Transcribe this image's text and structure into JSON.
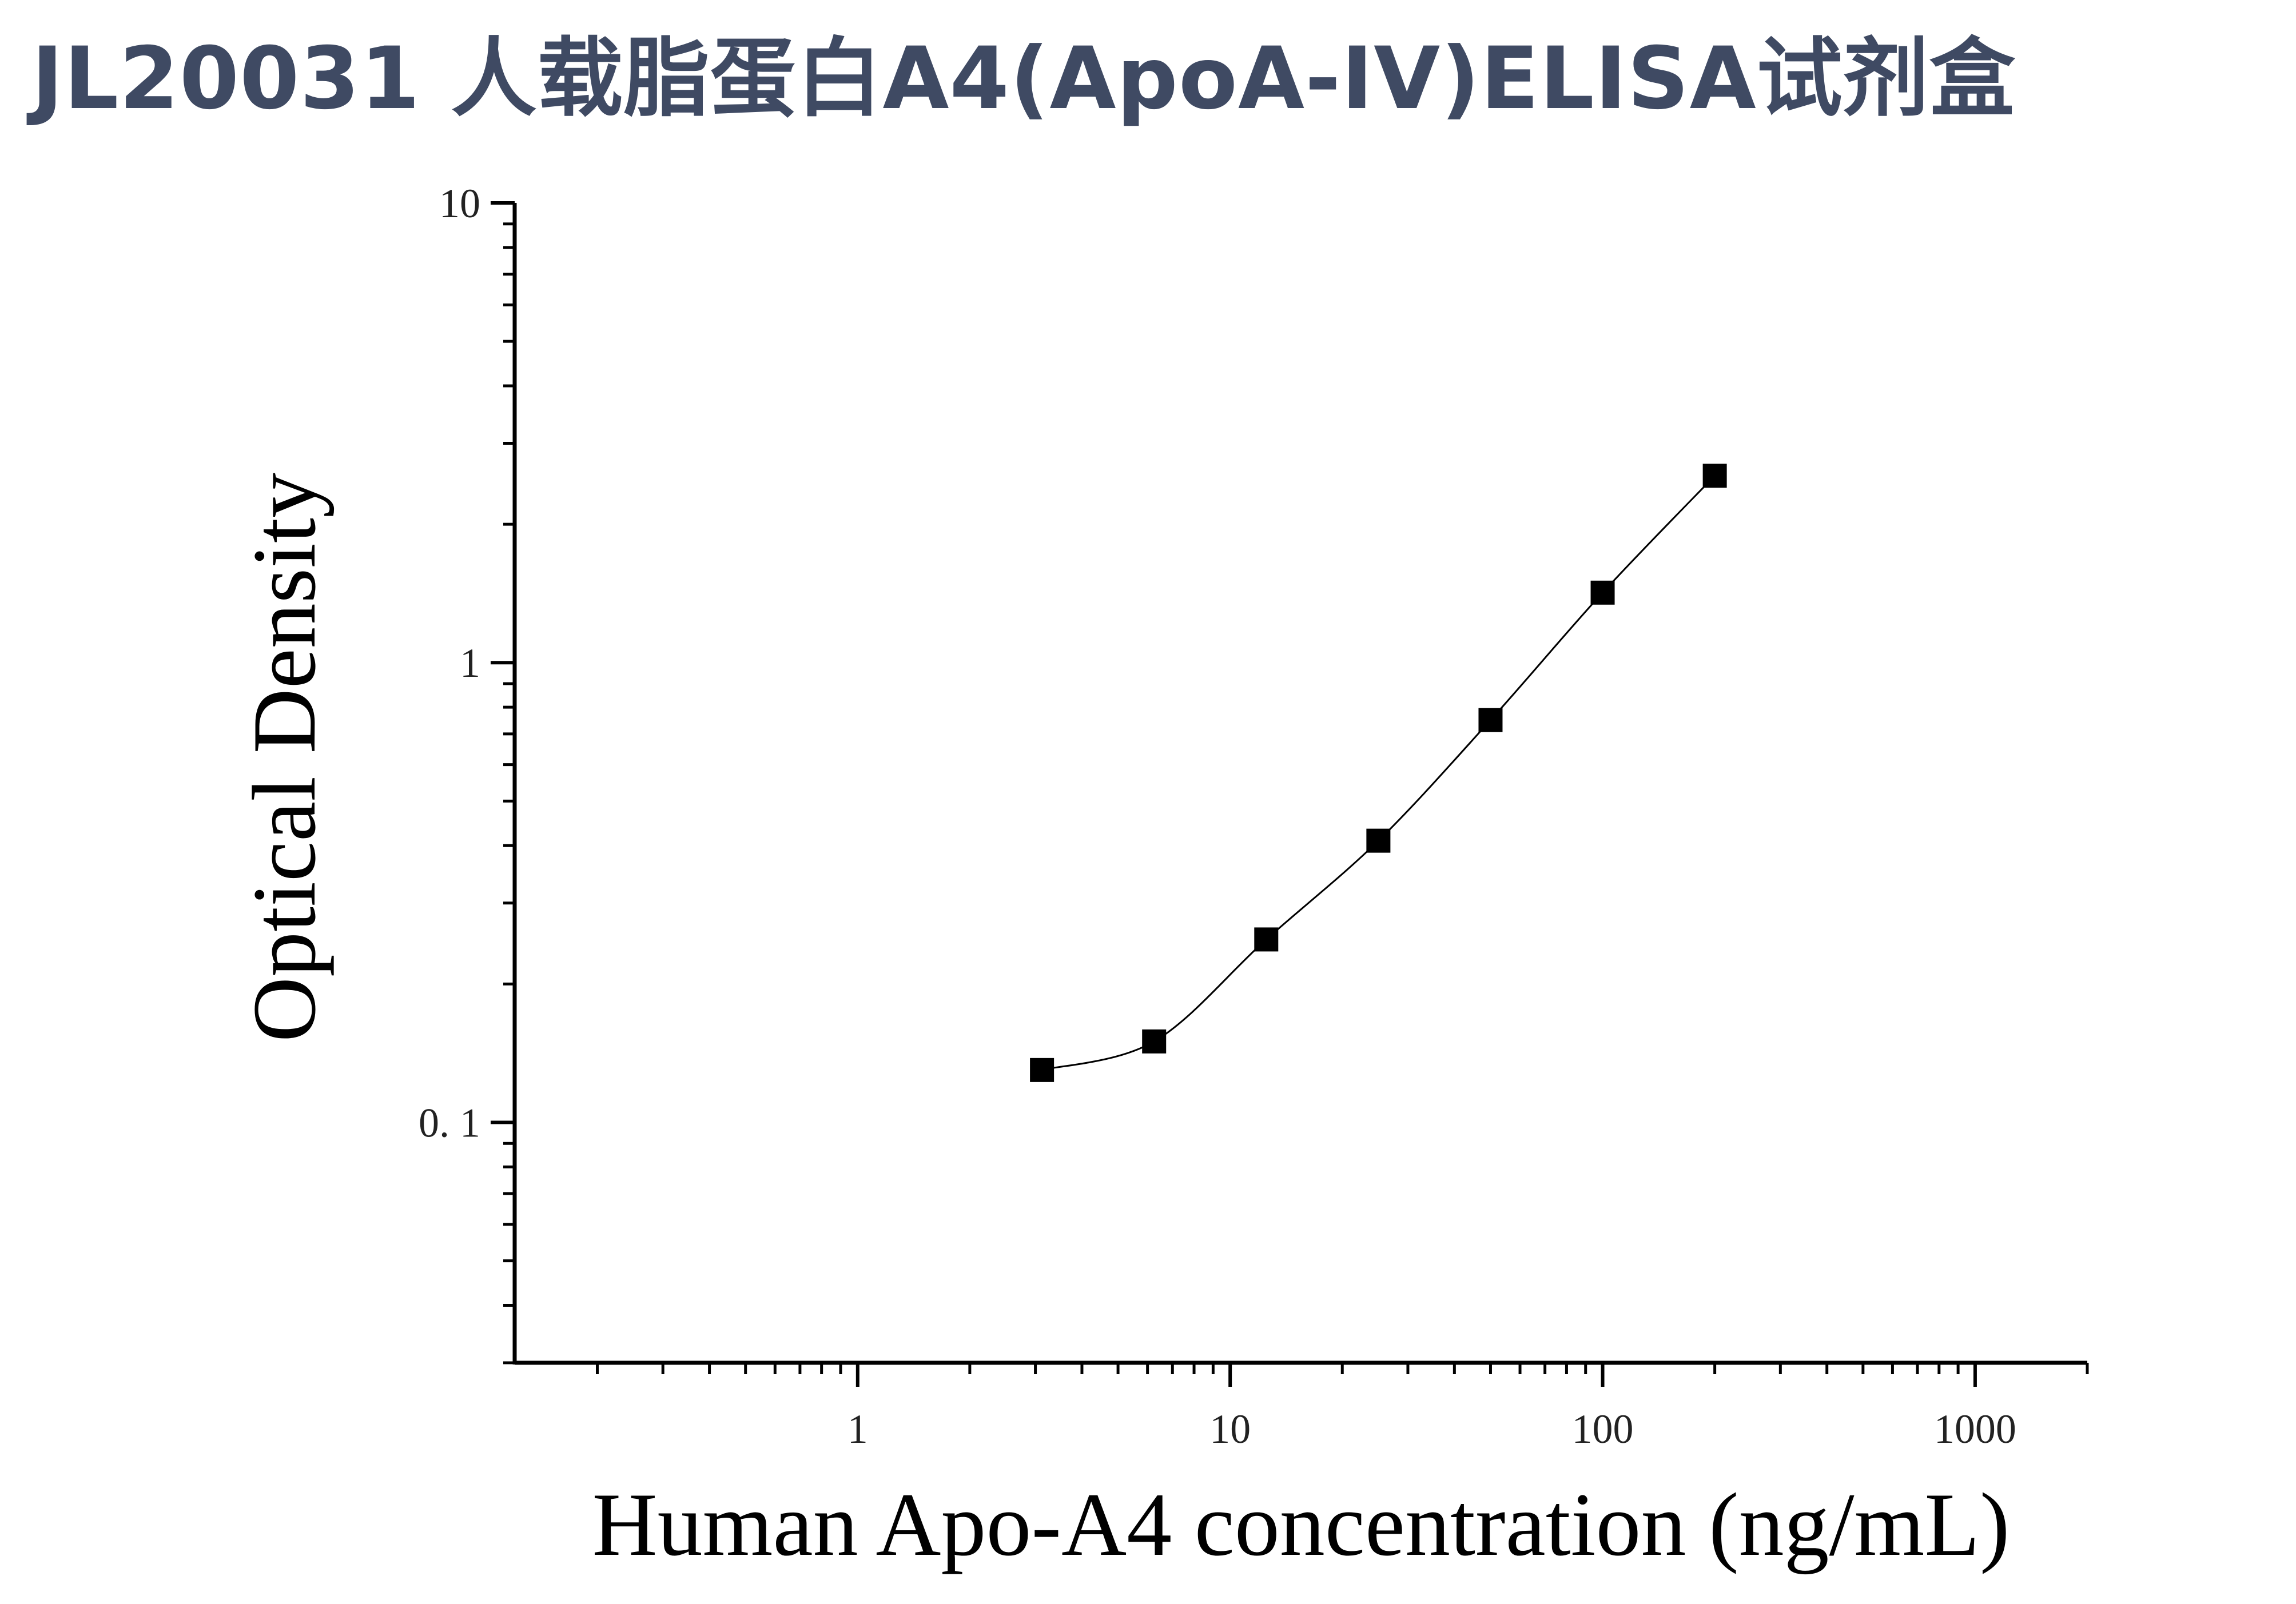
{
  "page": {
    "title": "JL20031 人载脂蛋白A4(ApoA-IV)ELISA试剂盒"
  },
  "chart_data": {
    "type": "scatter",
    "title": "",
    "xlabel": "Human Apo-A4 concentration (ng/mL)",
    "ylabel": "Optical Density",
    "xscale": "log",
    "yscale": "log",
    "xlim": [
      0.12,
      2000
    ],
    "ylim": [
      0.03,
      10
    ],
    "x_ticks": [
      {
        "value": 1,
        "label": "1"
      },
      {
        "value": 10,
        "label": "10"
      },
      {
        "value": 100,
        "label": "100"
      },
      {
        "value": 1000,
        "label": "1000"
      }
    ],
    "y_ticks": [
      {
        "value": 0.1,
        "label": "0. 1"
      },
      {
        "value": 1,
        "label": "1"
      },
      {
        "value": 10,
        "label": "10"
      }
    ],
    "grid": false,
    "legend": "none",
    "marker": "square",
    "series": [
      {
        "x": [
          3.125,
          6.25,
          12.5,
          25,
          50,
          100,
          200
        ],
        "y": [
          0.13,
          0.15,
          0.25,
          0.41,
          0.75,
          1.42,
          2.55
        ],
        "fit": "smooth curve",
        "color": "#000000"
      }
    ]
  }
}
